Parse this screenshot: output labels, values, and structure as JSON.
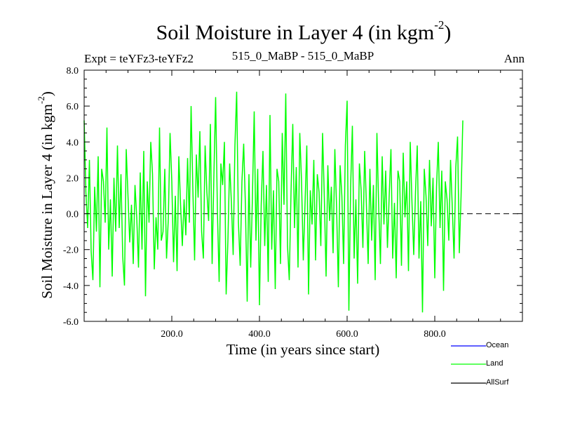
{
  "title": {
    "main": "Soil Moisture in Layer 4 (in kgm",
    "sup": "-2",
    "close": ")"
  },
  "expt_label": "Expt = teYFz3-teYFz2",
  "subtitle": "515_0_MaBP - 515_0_MaBP",
  "season": "Ann",
  "colors": {
    "ocean": "#0000ff",
    "land": "#00ff00",
    "allsurf": "#000000",
    "zero_line": "#000000"
  },
  "chart_data": {
    "type": "line",
    "title": "Soil Moisture in Layer 4 (in kgm-2)",
    "xlabel": "Time (in years since start)",
    "ylabel": "Soil Moisture in Layer 4 (in kgm-2)",
    "ylabel_parts": {
      "main": "Soil Moisture in Layer 4 (in kgm",
      "sup": "-2",
      "close": ")"
    },
    "xlim": [
      0,
      1000
    ],
    "ylim": [
      -6.0,
      8.0
    ],
    "xticks": [
      200,
      400,
      600,
      800
    ],
    "xtick_labels": [
      "200.0",
      "400.0",
      "600.0",
      "800.0"
    ],
    "yticks": [
      -6,
      -4,
      -2,
      0,
      2,
      4,
      6,
      8
    ],
    "ytick_labels": [
      "-6.0",
      "-4.0",
      "-2.0",
      "0.0",
      "2.0",
      "4.0",
      "6.0",
      "8.0"
    ],
    "legend_position": "bottom-right",
    "series": [
      {
        "name": "Ocean",
        "color": "#0000ff",
        "values": []
      },
      {
        "name": "Land",
        "color": "#00ff00",
        "x_start": 0,
        "x_step": 4,
        "values": [
          5.2,
          1.2,
          -0.8,
          3.0,
          -2.1,
          -3.7,
          1.5,
          -1.0,
          3.2,
          -4.1,
          2.5,
          1.8,
          -0.5,
          4.8,
          -2.0,
          0.8,
          -3.5,
          2.0,
          -1.0,
          3.8,
          -0.8,
          2.2,
          -2.4,
          -4.0,
          3.6,
          1.0,
          -1.6,
          0.5,
          -2.8,
          1.6,
          -0.2,
          -3.0,
          2.3,
          -2.0,
          3.5,
          -4.6,
          1.8,
          -0.5,
          4.0,
          2.2,
          -3.1,
          -0.2,
          -2.0,
          4.8,
          -1.5,
          -1.0,
          2.5,
          -2.5,
          -0.3,
          4.5,
          1.8,
          -2.7,
          1.0,
          -3.2,
          3.2,
          0.5,
          -1.8,
          0.8,
          -1.2,
          3.1,
          -0.5,
          6.0,
          1.4,
          -2.6,
          3.3,
          0.9,
          4.6,
          -1.0,
          -2.5,
          3.8,
          1.2,
          -0.4,
          5.0,
          -2.8,
          2.1,
          6.5,
          0.2,
          -3.8,
          2.8,
          1.6,
          4.0,
          -4.5,
          -1.5,
          2.8,
          0.6,
          -2.3,
          3.8,
          6.8,
          -0.5,
          -2.9,
          1.8,
          3.9,
          0.4,
          -4.9,
          2.2,
          -3.0,
          1.0,
          5.7,
          -1.5,
          2.5,
          -5.1,
          0.5,
          3.5,
          -1.8,
          1.6,
          -3.8,
          5.5,
          -2.0,
          1.3,
          -4.2,
          2.5,
          1.8,
          -2.8,
          4.5,
          0.5,
          6.7,
          -1.8,
          -3.7,
          1.2,
          5.0,
          -0.8,
          2.6,
          -3.0,
          4.5,
          1.8,
          -2.6,
          0.6,
          3.8,
          -4.5,
          1.3,
          -0.6,
          3.0,
          -2.6,
          2.2,
          1.2,
          -1.8,
          4.5,
          0.9,
          -3.5,
          2.7,
          -0.4,
          1.5,
          -2.2,
          3.6,
          0.3,
          -4.1,
          2.7,
          1.0,
          -2.8,
          3.8,
          6.3,
          -5.4,
          1.5,
          4.9,
          -2.5,
          0.8,
          -3.9,
          2.8,
          1.3,
          -1.9,
          3.5,
          0.5,
          -2.8,
          2.5,
          -1.5,
          1.6,
          -3.7,
          4.5,
          0.4,
          -2.8,
          3.2,
          -0.6,
          2.4,
          -1.9,
          1.0,
          3.6,
          -2.5,
          0.6,
          -3.6,
          2.4,
          1.8,
          -2.9,
          3.4,
          -0.2,
          1.8,
          -3.2,
          4.0,
          0.6,
          -2.3,
          1.2,
          3.8,
          -2.5,
          0.7,
          -5.5,
          2.5,
          1.0,
          -1.8,
          3.0,
          -0.7,
          2.0,
          -3.6,
          1.5,
          4.0,
          -0.8,
          2.4,
          -4.3,
          1.8,
          0.8,
          -1.5,
          3.0,
          0.3,
          -2.5,
          2.6,
          4.3,
          -2.2,
          1.0,
          5.2
        ]
      },
      {
        "name": "AllSurf",
        "color": "#000000",
        "values": []
      }
    ],
    "reference_line": {
      "y": 0,
      "style": "dashed"
    }
  },
  "legend": [
    {
      "name": "Ocean",
      "color": "#0000ff"
    },
    {
      "name": "Land",
      "color": "#00ff00"
    },
    {
      "name": "AllSurf",
      "color": "#000000"
    }
  ]
}
